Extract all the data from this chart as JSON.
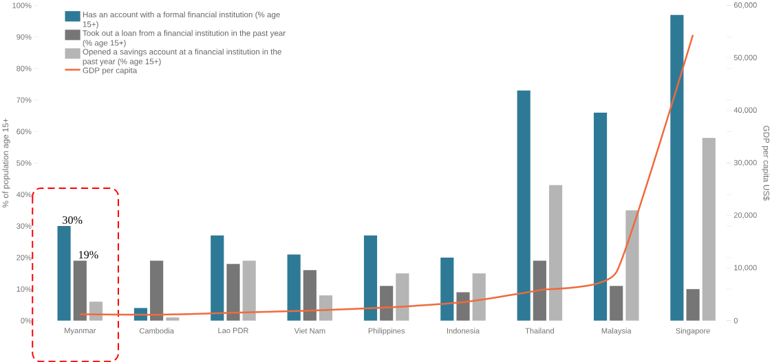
{
  "chart_data": {
    "type": "bar",
    "categories": [
      "Myanmar",
      "Cambodia",
      "Lao PDR",
      "Viet Nam",
      "Philippines",
      "Indonesia",
      "Thailand",
      "Malaysia",
      "Singapore"
    ],
    "series": [
      {
        "name": "Has an account with a formal financial institution (% age 15+)",
        "color": "#2e7a96",
        "values": [
          30,
          4,
          27,
          21,
          27,
          20,
          73,
          66,
          97
        ]
      },
      {
        "name": "Took out a loan from a financial institution in the past year (% age 15+)",
        "color": "#767676",
        "values": [
          19,
          19,
          18,
          16,
          11,
          9,
          19,
          11,
          10
        ]
      },
      {
        "name": "Opened a savings account at a financial institution in the past year (% age 15+)",
        "color": "#b5b5b5",
        "values": [
          6,
          1,
          19,
          8,
          15,
          15,
          43,
          35,
          58
        ]
      },
      {
        "name": "GDP per capita",
        "type": "line",
        "axis": "y2",
        "color": "#f06a3c",
        "values": [
          1200,
          1100,
          1500,
          1900,
          2500,
          3500,
          5800,
          9200,
          54400
        ]
      }
    ],
    "ylabel": "% of population age 15+",
    "y2label": "GDP per capita US$",
    "ylim": [
      0,
      100
    ],
    "yticks": [
      {
        "value": 0,
        "label": "0%"
      },
      {
        "value": 10,
        "label": "10%"
      },
      {
        "value": 20,
        "label": "20%"
      },
      {
        "value": 30,
        "label": "30%"
      },
      {
        "value": 40,
        "label": "40%"
      },
      {
        "value": 50,
        "label": "50%"
      },
      {
        "value": 60,
        "label": "60%"
      },
      {
        "value": 70,
        "label": "70%"
      },
      {
        "value": 80,
        "label": "80%"
      },
      {
        "value": 90,
        "label": "90%"
      },
      {
        "value": 100,
        "label": "100%"
      }
    ],
    "y2lim": [
      0,
      60000
    ],
    "y2ticks": [
      0,
      {
        "value": 10000,
        "label": "10,000"
      },
      {
        "value": 20000,
        "label": "20,000"
      },
      {
        "value": 30000,
        "label": "30,000"
      },
      {
        "value": 40000,
        "label": "40,000"
      },
      {
        "value": 50000,
        "label": "50,000"
      },
      {
        "value": 60000,
        "label": "60,000"
      }
    ],
    "legend": "top left",
    "annotations": [
      "30%",
      "19%"
    ]
  }
}
